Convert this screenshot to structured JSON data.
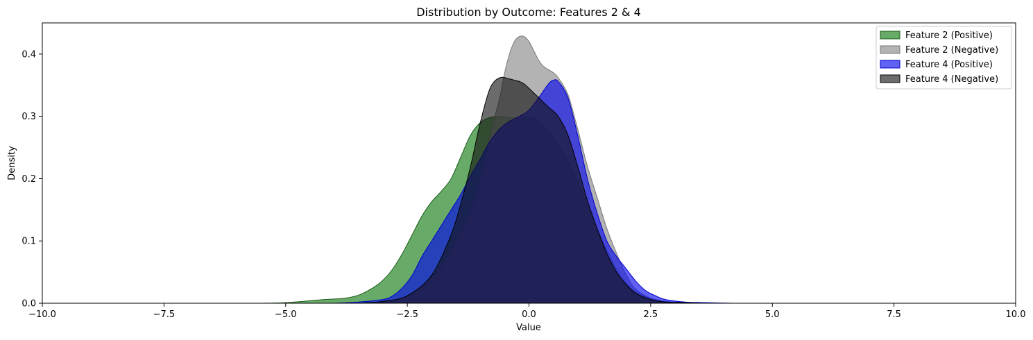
{
  "chart_data": {
    "type": "area",
    "title": "Distribution by Outcome: Features 2 & 4",
    "xlabel": "Value",
    "ylabel": "Density",
    "xlim": [
      -10,
      10
    ],
    "ylim": [
      0,
      0.45
    ],
    "xticks": [
      -10,
      -7.5,
      -5,
      -2.5,
      0,
      2.5,
      5,
      7.5,
      10
    ],
    "xtick_labels": [
      "−10.0",
      "−7.5",
      "−5.0",
      "−2.5",
      "0.0",
      "2.5",
      "5.0",
      "7.5",
      "10.0"
    ],
    "yticks": [
      0,
      0.1,
      0.2,
      0.3,
      0.4
    ],
    "ytick_labels": [
      "0.0",
      "0.1",
      "0.2",
      "0.3",
      "0.4"
    ],
    "grid": false,
    "legend_position": "top-right",
    "series": [
      {
        "name": "Feature 2 (Positive)",
        "fill": "#2e8b2e",
        "stroke": "#1a5c1a",
        "opacity": 0.72,
        "x": [
          -5.5,
          -5.0,
          -4.5,
          -4.2,
          -3.8,
          -3.5,
          -3.2,
          -3.0,
          -2.8,
          -2.6,
          -2.4,
          -2.2,
          -2.0,
          -1.8,
          -1.6,
          -1.4,
          -1.2,
          -1.0,
          -0.8,
          -0.6,
          -0.4,
          -0.2,
          0.0,
          0.2,
          0.4,
          0.6,
          0.8,
          1.0,
          1.2,
          1.4,
          1.6,
          1.8,
          2.0,
          2.2,
          2.5,
          2.8,
          3.2,
          3.6
        ],
        "y": [
          0.0,
          0.001,
          0.004,
          0.006,
          0.008,
          0.013,
          0.025,
          0.037,
          0.055,
          0.08,
          0.11,
          0.14,
          0.163,
          0.18,
          0.2,
          0.235,
          0.27,
          0.29,
          0.298,
          0.3,
          0.298,
          0.297,
          0.298,
          0.292,
          0.276,
          0.255,
          0.228,
          0.195,
          0.158,
          0.12,
          0.085,
          0.055,
          0.032,
          0.018,
          0.008,
          0.003,
          0.001,
          0.0
        ]
      },
      {
        "name": "Feature 2 (Negative)",
        "fill": "#999999",
        "stroke": "#777777",
        "opacity": 0.75,
        "x": [
          -3.5,
          -3.0,
          -2.5,
          -2.0,
          -1.6,
          -1.2,
          -1.0,
          -0.8,
          -0.6,
          -0.5,
          -0.4,
          -0.3,
          -0.2,
          -0.1,
          0.0,
          0.1,
          0.2,
          0.3,
          0.4,
          0.5,
          0.6,
          0.8,
          1.0,
          1.2,
          1.4,
          1.6,
          1.8,
          2.0,
          2.2,
          2.5,
          2.8,
          3.2,
          3.6
        ],
        "y": [
          0.0,
          0.003,
          0.012,
          0.04,
          0.085,
          0.15,
          0.2,
          0.27,
          0.33,
          0.37,
          0.4,
          0.42,
          0.428,
          0.428,
          0.42,
          0.405,
          0.39,
          0.38,
          0.375,
          0.37,
          0.362,
          0.335,
          0.28,
          0.22,
          0.17,
          0.12,
          0.08,
          0.045,
          0.022,
          0.008,
          0.003,
          0.001,
          0.0
        ]
      },
      {
        "name": "Feature 4 (Positive)",
        "fill": "#0000ee",
        "stroke": "#0000cc",
        "opacity": 0.62,
        "x": [
          -4.0,
          -3.5,
          -3.0,
          -2.8,
          -2.6,
          -2.4,
          -2.2,
          -2.0,
          -1.8,
          -1.6,
          -1.4,
          -1.2,
          -1.0,
          -0.8,
          -0.6,
          -0.4,
          -0.2,
          0.0,
          0.2,
          0.4,
          0.5,
          0.6,
          0.8,
          1.0,
          1.2,
          1.4,
          1.6,
          1.8,
          2.0,
          2.2,
          2.4,
          2.6,
          2.8,
          3.2,
          3.6,
          4.2
        ],
        "y": [
          0.0,
          0.002,
          0.006,
          0.012,
          0.025,
          0.045,
          0.075,
          0.1,
          0.125,
          0.15,
          0.175,
          0.205,
          0.232,
          0.26,
          0.28,
          0.292,
          0.3,
          0.31,
          0.33,
          0.352,
          0.358,
          0.356,
          0.33,
          0.27,
          0.2,
          0.145,
          0.1,
          0.075,
          0.055,
          0.035,
          0.02,
          0.012,
          0.006,
          0.002,
          0.001,
          0.0
        ]
      },
      {
        "name": "Feature 4 (Negative)",
        "fill": "#111111",
        "stroke": "#000000",
        "opacity": 0.62,
        "x": [
          -3.5,
          -3.0,
          -2.5,
          -2.0,
          -1.6,
          -1.4,
          -1.2,
          -1.0,
          -0.8,
          -0.6,
          -0.4,
          -0.3,
          -0.2,
          -0.1,
          0.0,
          0.2,
          0.4,
          0.6,
          0.8,
          1.0,
          1.2,
          1.4,
          1.6,
          1.8,
          2.0,
          2.2,
          2.5,
          2.8,
          3.2,
          3.6
        ],
        "y": [
          0.0,
          0.003,
          0.012,
          0.045,
          0.11,
          0.16,
          0.22,
          0.29,
          0.345,
          0.362,
          0.36,
          0.358,
          0.356,
          0.352,
          0.345,
          0.33,
          0.315,
          0.3,
          0.27,
          0.22,
          0.165,
          0.12,
          0.08,
          0.05,
          0.03,
          0.016,
          0.006,
          0.002,
          0.001,
          0.0
        ]
      }
    ]
  }
}
